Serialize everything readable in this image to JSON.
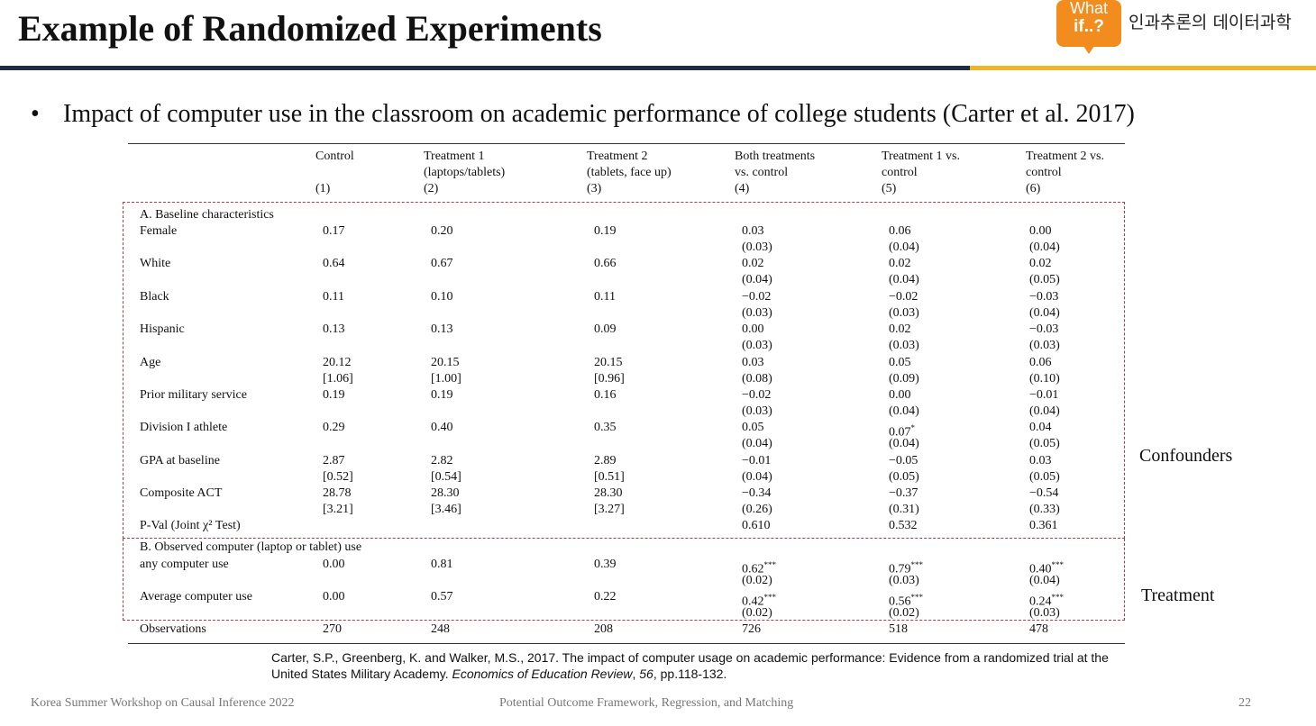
{
  "slide": {
    "title": "Example of Randomized Experiments",
    "logo_line1": "What",
    "logo_line2": "if..?",
    "brand_text": "인과추론의 데이터과학",
    "bullet_symbol": "•",
    "bullet_text": "Impact of computer use in the classroom on academic performance of college students (Carter et al. 2017)",
    "side_label_1": "Confounders",
    "side_label_2": "Treatment"
  },
  "table": {
    "columns": [
      {
        "lines": [
          "Control",
          "",
          "(1)"
        ]
      },
      {
        "lines": [
          "Treatment 1",
          "(laptops/tablets)",
          "(2)"
        ]
      },
      {
        "lines": [
          "Treatment 2",
          "(tablets, face up)",
          "(3)"
        ]
      },
      {
        "lines": [
          "Both treatments",
          "vs. control",
          "(4)"
        ]
      },
      {
        "lines": [
          "Treatment 1 vs.",
          "control",
          "(5)"
        ]
      },
      {
        "lines": [
          "Treatment 2 vs.",
          "control",
          "(6)"
        ]
      }
    ],
    "section_a": "A. Baseline characteristics",
    "section_b": "B. Observed computer (laptop or tablet) use",
    "rows": [
      {
        "label": "Female",
        "v": [
          "0.17",
          "0.20",
          "0.19",
          "0.03",
          "0.06",
          "0.00"
        ],
        "s": [
          "",
          "",
          "",
          "(0.03)",
          "(0.04)",
          "(0.04)"
        ]
      },
      {
        "label": "White",
        "v": [
          "0.64",
          "0.67",
          "0.66",
          "0.02",
          "0.02",
          "0.02"
        ],
        "s": [
          "",
          "",
          "",
          "(0.04)",
          "(0.04)",
          "(0.05)"
        ]
      },
      {
        "label": "Black",
        "v": [
          "0.11",
          "0.10",
          "0.11",
          "−0.02",
          "−0.02",
          "−0.03"
        ],
        "s": [
          "",
          "",
          "",
          "(0.03)",
          "(0.03)",
          "(0.04)"
        ]
      },
      {
        "label": "Hispanic",
        "v": [
          "0.13",
          "0.13",
          "0.09",
          "0.00",
          "0.02",
          "−0.03"
        ],
        "s": [
          "",
          "",
          "",
          "(0.03)",
          "(0.03)",
          "(0.03)"
        ]
      },
      {
        "label": "Age",
        "v": [
          "20.12",
          "20.15",
          "20.15",
          "0.03",
          "0.05",
          "0.06"
        ],
        "s": [
          "[1.06]",
          "[1.00]",
          "[0.96]",
          "(0.08)",
          "(0.09)",
          "(0.10)"
        ]
      },
      {
        "label": "Prior military service",
        "v": [
          "0.19",
          "0.19",
          "0.16",
          "−0.02",
          "0.00",
          "−0.01"
        ],
        "s": [
          "",
          "",
          "",
          "(0.03)",
          "(0.04)",
          "(0.04)"
        ]
      },
      {
        "label": "Division I athlete",
        "v": [
          "0.29",
          "0.40",
          "0.35",
          "0.05",
          "0.07*",
          "0.04"
        ],
        "s": [
          "",
          "",
          "",
          "(0.04)",
          "(0.04)",
          "(0.05)"
        ]
      },
      {
        "label": "GPA at baseline",
        "v": [
          "2.87",
          "2.82",
          "2.89",
          "−0.01",
          "−0.05",
          "0.03"
        ],
        "s": [
          "[0.52]",
          "[0.54]",
          "[0.51]",
          "(0.04)",
          "(0.05)",
          "(0.05)"
        ]
      },
      {
        "label": "Composite ACT",
        "v": [
          "28.78",
          "28.30",
          "28.30",
          "−0.34",
          "−0.37",
          "−0.54"
        ],
        "s": [
          "[3.21]",
          "[3.46]",
          "[3.27]",
          "(0.26)",
          "(0.31)",
          "(0.33)"
        ]
      }
    ],
    "pval_label": "P-Val (Joint χ² Test)",
    "pval_values": [
      "0.610",
      "0.532",
      "0.361"
    ],
    "rows_b": [
      {
        "label": "any computer use",
        "v": [
          "0.00",
          "0.81",
          "0.39",
          "0.62***",
          "0.79***",
          "0.40***"
        ],
        "s": [
          "",
          "",
          "",
          "(0.02)",
          "(0.03)",
          "(0.04)"
        ]
      },
      {
        "label": "Average computer use",
        "v": [
          "0.00",
          "0.57",
          "0.22",
          "0.42***",
          "0.56***",
          "0.24***"
        ],
        "s": [
          "",
          "",
          "",
          "(0.02)",
          "(0.02)",
          "(0.03)"
        ]
      }
    ],
    "observations_label": "Observations",
    "observations": [
      "270",
      "248",
      "208",
      "726",
      "518",
      "478"
    ]
  },
  "citation": {
    "part1": "Carter, S.P., Greenberg, K. and Walker, M.S., 2017. The impact of computer usage on academic performance: Evidence from a randomized trial at the United States Military Academy. ",
    "journal": "Economics of Education Review",
    "sep": ", ",
    "volume": "56",
    "pages": ", pp.118-132."
  },
  "footer": {
    "left": "Korea Summer Workshop on Causal Inference 2022",
    "center": "Potential Outcome Framework, Regression, and Matching",
    "page": "22"
  }
}
